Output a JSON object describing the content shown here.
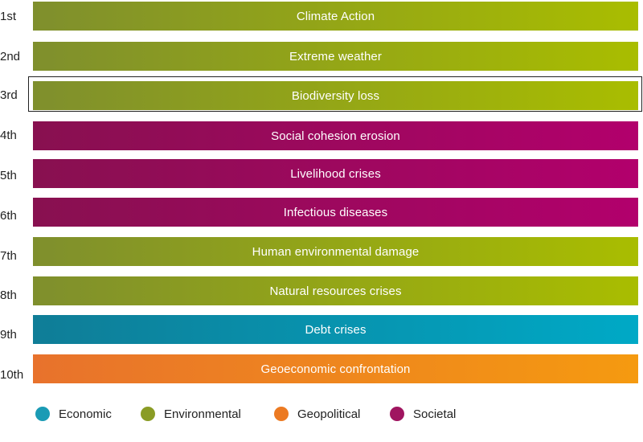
{
  "chart_data": {
    "type": "table",
    "title": "",
    "highlighted_rank": "3rd",
    "rows": [
      {
        "rank": "1st",
        "label": "Climate Action",
        "category": "Environmental"
      },
      {
        "rank": "2nd",
        "label": "Extreme weather",
        "category": "Environmental"
      },
      {
        "rank": "3rd",
        "label": "Biodiversity loss",
        "category": "Environmental"
      },
      {
        "rank": "4th",
        "label": "Social cohesion erosion",
        "category": "Societal"
      },
      {
        "rank": "5th",
        "label": "Livelihood crises",
        "category": "Societal"
      },
      {
        "rank": "6th",
        "label": "Infectious diseases",
        "category": "Societal"
      },
      {
        "rank": "7th",
        "label": "Human environmental damage",
        "category": "Environmental"
      },
      {
        "rank": "8th",
        "label": "Natural resources crises",
        "category": "Environmental"
      },
      {
        "rank": "9th",
        "label": "Debt crises",
        "category": "Economic"
      },
      {
        "rank": "10th",
        "label": "Geoeconomic confrontation",
        "category": "Geopolitical"
      }
    ],
    "legend": [
      {
        "label": "Economic",
        "color": "#1a9bb5",
        "gradient": [
          "#0f7d97",
          "#00a9c6"
        ]
      },
      {
        "label": "Environmental",
        "color": "#8a9c25",
        "gradient": [
          "#7f8f2d",
          "#a9bd00"
        ]
      },
      {
        "label": "Geopolitical",
        "color": "#ec7a22",
        "gradient": [
          "#e8722c",
          "#f59a10"
        ]
      },
      {
        "label": "Societal",
        "color": "#a01560",
        "gradient": [
          "#881050",
          "#b2006c"
        ]
      }
    ],
    "legend_placement": "bottom"
  }
}
